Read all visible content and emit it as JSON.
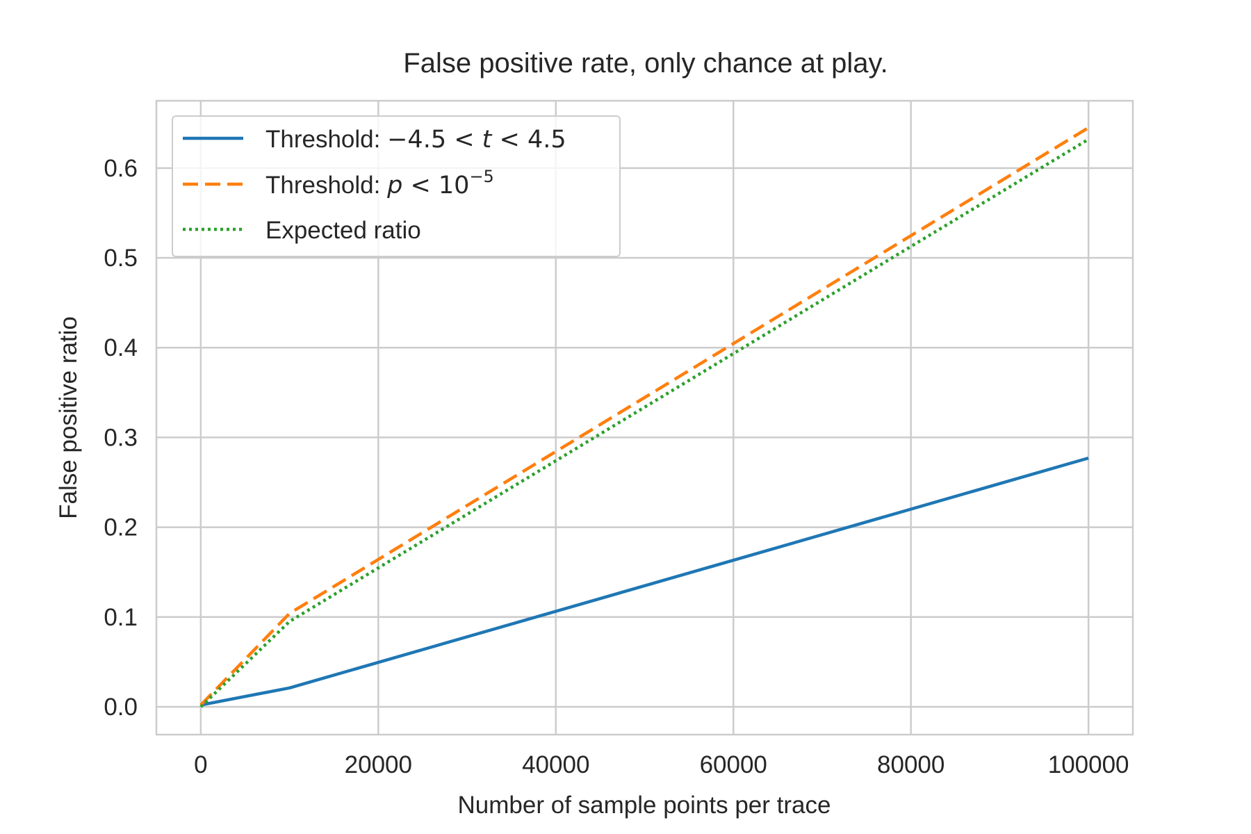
{
  "chart_data": {
    "type": "line",
    "title": "False positive rate, only chance at play.",
    "xlabel": "Number of sample points per trace",
    "ylabel": "False positive ratio",
    "xlim": [
      -5000,
      105000
    ],
    "ylim": [
      -0.031,
      0.675
    ],
    "x_ticks": [
      0,
      20000,
      40000,
      60000,
      80000,
      100000
    ],
    "x_tick_labels": [
      "0",
      "20000",
      "40000",
      "60000",
      "80000",
      "100000"
    ],
    "y_ticks": [
      0.0,
      0.1,
      0.2,
      0.3,
      0.4,
      0.5,
      0.6
    ],
    "y_tick_labels": [
      "0.0",
      "0.1",
      "0.2",
      "0.3",
      "0.4",
      "0.5",
      "0.6"
    ],
    "grid": true,
    "legend_position": "upper-left",
    "x": [
      0,
      10000,
      100000
    ],
    "series": [
      {
        "name": "Threshold: −4.5 < t < 4.5",
        "legend_parts": {
          "prefix": "Threshold: ",
          "a": "−4.5 < ",
          "var": "t",
          "b": " < 4.5"
        },
        "values": [
          0.002,
          0.021,
          0.277
        ],
        "color": "#1f77b4",
        "style": "solid"
      },
      {
        "name": "Threshold: p < 10−5",
        "legend_parts": {
          "prefix": "Threshold: ",
          "var": "p",
          "a": " < 10",
          "exp": "−5"
        },
        "values": [
          0.002,
          0.104,
          0.645
        ],
        "color": "#ff7f0e",
        "style": "dashed"
      },
      {
        "name": "Expected ratio",
        "values": [
          0.0,
          0.095,
          0.632
        ],
        "color": "#2ca02c",
        "style": "dotted"
      }
    ],
    "axes_edge_color": "#cccccc",
    "grid_color": "#cccccc"
  }
}
